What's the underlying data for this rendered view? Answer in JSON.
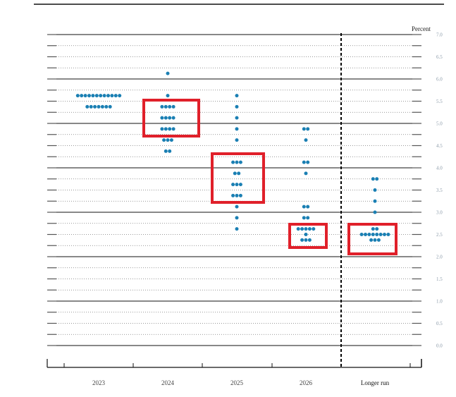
{
  "chart_data": {
    "type": "scatter",
    "subtype": "dot-plot",
    "title": "",
    "xlabel": "",
    "ylabel": "Percent",
    "ylim": [
      0,
      7
    ],
    "y_ticks": [
      "0.0",
      "0.5",
      "1.0",
      "1.5",
      "2.0",
      "2.5",
      "3.0",
      "3.5",
      "4.0",
      "4.5",
      "5.0",
      "5.5",
      "6.0",
      "6.5",
      "7.0"
    ],
    "categories": [
      "2023",
      "2024",
      "2025",
      "2026",
      "Longer run"
    ],
    "grid": true,
    "colors": {
      "dots": "#1a7fb3",
      "highlight_box": "#e0202a",
      "grid": "#444444"
    },
    "series": [
      {
        "name": "2023",
        "points": [
          {
            "value": 5.625,
            "count": 12
          },
          {
            "value": 5.375,
            "count": 7
          }
        ]
      },
      {
        "name": "2024",
        "points": [
          {
            "value": 6.125,
            "count": 1
          },
          {
            "value": 5.625,
            "count": 1
          },
          {
            "value": 5.375,
            "count": 4
          },
          {
            "value": 5.125,
            "count": 4
          },
          {
            "value": 4.875,
            "count": 4
          },
          {
            "value": 4.625,
            "count": 3
          },
          {
            "value": 4.375,
            "count": 2
          }
        ]
      },
      {
        "name": "2025",
        "points": [
          {
            "value": 5.625,
            "count": 1
          },
          {
            "value": 5.375,
            "count": 1
          },
          {
            "value": 5.125,
            "count": 1
          },
          {
            "value": 4.875,
            "count": 1
          },
          {
            "value": 4.625,
            "count": 1
          },
          {
            "value": 4.125,
            "count": 3
          },
          {
            "value": 3.875,
            "count": 2
          },
          {
            "value": 3.625,
            "count": 3
          },
          {
            "value": 3.375,
            "count": 3
          },
          {
            "value": 3.125,
            "count": 1
          },
          {
            "value": 2.875,
            "count": 1
          },
          {
            "value": 2.625,
            "count": 1
          }
        ]
      },
      {
        "name": "2026",
        "points": [
          {
            "value": 4.875,
            "count": 2
          },
          {
            "value": 4.625,
            "count": 1
          },
          {
            "value": 4.125,
            "count": 2
          },
          {
            "value": 3.875,
            "count": 1
          },
          {
            "value": 3.125,
            "count": 2
          },
          {
            "value": 2.875,
            "count": 2
          },
          {
            "value": 2.625,
            "count": 5
          },
          {
            "value": 2.5,
            "count": 1
          },
          {
            "value": 2.375,
            "count": 3
          }
        ]
      },
      {
        "name": "Longer run",
        "points": [
          {
            "value": 3.75,
            "count": 2
          },
          {
            "value": 3.5,
            "count": 1
          },
          {
            "value": 3.25,
            "count": 1
          },
          {
            "value": 3.0,
            "count": 1
          },
          {
            "value": 2.625,
            "count": 2
          },
          {
            "value": 2.5,
            "count": 8
          },
          {
            "value": 2.375,
            "count": 3
          }
        ]
      }
    ],
    "annotations": [
      {
        "type": "highlight-box",
        "category": "2024",
        "range": [
          4.875,
          5.375
        ]
      },
      {
        "type": "highlight-box",
        "category": "2025",
        "range": [
          3.375,
          4.125
        ]
      },
      {
        "type": "highlight-box",
        "category": "2026",
        "range": [
          2.375,
          2.625
        ]
      },
      {
        "type": "highlight-box",
        "category": "Longer run",
        "range": [
          2.375,
          2.625
        ]
      }
    ]
  }
}
